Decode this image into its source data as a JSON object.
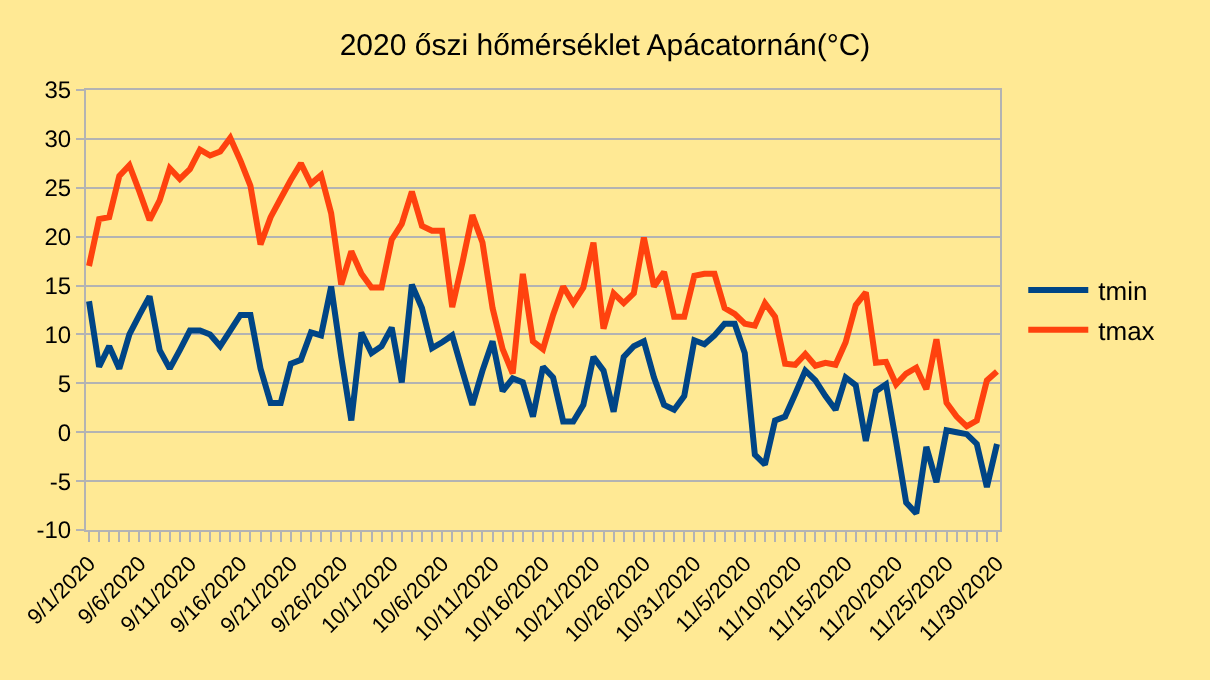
{
  "chart_data": {
    "type": "line",
    "title": "2020 őszi hőmérséklet Apácatornán(°C)",
    "categories": [
      "9/1/2020",
      null,
      null,
      null,
      null,
      "9/6/2020",
      null,
      null,
      null,
      null,
      "9/11/2020",
      null,
      null,
      null,
      null,
      "9/16/2020",
      null,
      null,
      null,
      null,
      "9/21/2020",
      null,
      null,
      null,
      null,
      "9/26/2020",
      null,
      null,
      null,
      null,
      "10/1/2020",
      null,
      null,
      null,
      null,
      "10/6/2020",
      null,
      null,
      null,
      null,
      "10/11/2020",
      null,
      null,
      null,
      null,
      "10/16/2020",
      null,
      null,
      null,
      null,
      "10/21/2020",
      null,
      null,
      null,
      null,
      "10/26/2020",
      null,
      null,
      null,
      null,
      "10/31/2020",
      null,
      null,
      null,
      null,
      "11/5/2020",
      null,
      null,
      null,
      null,
      "11/10/2020",
      null,
      null,
      null,
      null,
      "11/15/2020",
      null,
      null,
      null,
      null,
      "11/20/2020",
      null,
      null,
      null,
      null,
      "11/25/2020",
      null,
      null,
      null,
      null,
      "11/30/2020"
    ],
    "series": [
      {
        "name": "tmin",
        "color": "#004586",
        "values": [
          13.4,
          6.7,
          8.8,
          6.5,
          10.0,
          12.0,
          13.9,
          8.4,
          6.5,
          8.4,
          10.4,
          10.4,
          10.0,
          8.8,
          10.4,
          12.0,
          12.0,
          6.5,
          3.0,
          3.0,
          7.0,
          7.4,
          10.2,
          9.9,
          14.9,
          7.7,
          1.2,
          10.2,
          8.1,
          8.8,
          10.7,
          5.1,
          15.1,
          12.7,
          8.6,
          9.2,
          9.9,
          6.3,
          2.8,
          6.3,
          9.3,
          4.2,
          5.5,
          5.1,
          1.6,
          6.7,
          5.6,
          1.1,
          1.1,
          2.8,
          7.7,
          6.3,
          2.1,
          7.7,
          8.8,
          9.3,
          5.6,
          2.8,
          2.3,
          3.7,
          9.4,
          9.0,
          9.9,
          11.1,
          11.1,
          8.1,
          -2.3,
          -3.3,
          1.2,
          1.6,
          3.9,
          6.3,
          5.3,
          3.7,
          2.3,
          5.6,
          4.8,
          -0.9,
          4.2,
          4.9,
          -1.0,
          -7.2,
          -8.3,
          -1.5,
          -5.1,
          0.2,
          0.0,
          -0.2,
          -1.2,
          -5.6,
          -1.2
        ]
      },
      {
        "name": "tmax",
        "color": "#ff420e",
        "values": [
          17.0,
          21.8,
          22.0,
          26.2,
          27.3,
          24.6,
          21.7,
          23.7,
          27.0,
          25.9,
          26.9,
          28.9,
          28.3,
          28.7,
          30.1,
          27.8,
          25.2,
          19.2,
          22.0,
          23.9,
          25.8,
          27.5,
          25.4,
          26.3,
          22.4,
          15.1,
          18.5,
          16.2,
          14.8,
          14.8,
          19.7,
          21.3,
          24.6,
          21.1,
          20.6,
          20.6,
          12.8,
          17.3,
          22.2,
          19.4,
          12.7,
          8.5,
          6.0,
          16.2,
          9.3,
          8.5,
          12.0,
          14.9,
          13.2,
          14.8,
          19.4,
          10.6,
          14.2,
          13.2,
          14.2,
          19.9,
          14.9,
          16.4,
          11.8,
          11.8,
          16.0,
          16.2,
          16.2,
          12.7,
          12.1,
          11.1,
          10.9,
          13.2,
          11.8,
          7.0,
          6.9,
          8.0,
          6.8,
          7.1,
          6.9,
          9.2,
          13.0,
          14.3,
          7.1,
          7.2,
          4.9,
          6.0,
          6.6,
          4.4,
          9.5,
          3.0,
          1.6,
          0.6,
          1.2,
          5.3,
          6.2
        ]
      }
    ],
    "ylim": [
      -10,
      35
    ],
    "yticks": [
      -10,
      -5,
      0,
      5,
      10,
      15,
      20,
      25,
      30,
      35
    ],
    "grid": "y",
    "legend": "right",
    "marker": "none",
    "line_style": "solid"
  }
}
